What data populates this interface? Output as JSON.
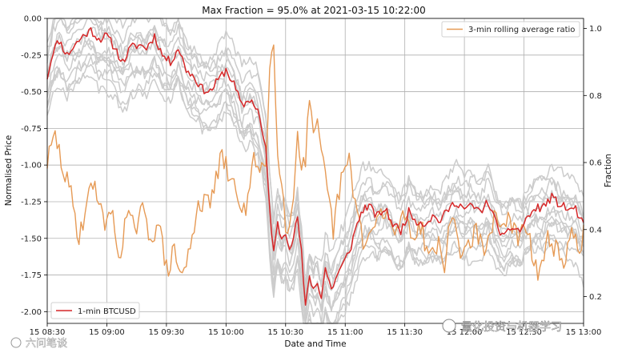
{
  "chart_data": {
    "type": "line",
    "title": "Max Fraction = 95.0% at 2021-03-15 10:22:00",
    "xlabel": "Date and Time",
    "ylabel_left": "Normalised Price",
    "ylabel_right": "Fraction",
    "x_ticks": [
      "15 08:30",
      "15 09:00",
      "15 09:30",
      "15 10:00",
      "15 10:30",
      "15 11:00",
      "15 11:30",
      "15 12:00",
      "15 12:30",
      "15 13:00"
    ],
    "x_tick_minutes": [
      0,
      30,
      60,
      90,
      120,
      150,
      180,
      210,
      240,
      270
    ],
    "xlim_minutes": [
      0,
      270
    ],
    "y_left_ticks": [
      "0.00",
      "-0.25",
      "-0.50",
      "-0.75",
      "-1.00",
      "-1.25",
      "-1.50",
      "-1.75",
      "-2.00"
    ],
    "y_left_tick_values": [
      0,
      -0.25,
      -0.5,
      -0.75,
      -1.0,
      -1.25,
      -1.5,
      -1.75,
      -2.0
    ],
    "y_left_lim": [
      -2.08,
      0
    ],
    "y_right_ticks": [
      "0.2",
      "0.4",
      "0.6",
      "0.8",
      "1.0"
    ],
    "y_right_tick_values": [
      0.2,
      0.4,
      0.6,
      0.8,
      1.0
    ],
    "y_right_lim": [
      0.12,
      1.03
    ],
    "grid": true,
    "series": [
      {
        "name": "1-min BTCUSD",
        "axis": "left",
        "color": "#d62728",
        "legend": "bottom-left",
        "keypoints_minutes": [
          0,
          3,
          6,
          10,
          14,
          18,
          22,
          26,
          30,
          34,
          38,
          42,
          46,
          50,
          54,
          58,
          62,
          66,
          70,
          74,
          78,
          82,
          86,
          90,
          94,
          98,
          102,
          106,
          110,
          112,
          114,
          116,
          118,
          120,
          122,
          124,
          126,
          128,
          130,
          132,
          134,
          136,
          138,
          140,
          143,
          146,
          150,
          153,
          156,
          159,
          162,
          166,
          170,
          174,
          178,
          182,
          186,
          190,
          194,
          198,
          202,
          206,
          210,
          214,
          218,
          222,
          226,
          230,
          234,
          238,
          242,
          246,
          250,
          254,
          258,
          262,
          266,
          270
        ],
        "keypoints_values": [
          -0.4,
          -0.22,
          -0.15,
          -0.25,
          -0.18,
          -0.12,
          -0.08,
          -0.14,
          -0.12,
          -0.2,
          -0.3,
          -0.2,
          -0.18,
          -0.2,
          -0.12,
          -0.25,
          -0.3,
          -0.2,
          -0.35,
          -0.4,
          -0.48,
          -0.5,
          -0.42,
          -0.35,
          -0.45,
          -0.6,
          -0.55,
          -0.62,
          -0.9,
          -1.3,
          -1.6,
          -1.4,
          -1.5,
          -1.45,
          -1.55,
          -1.5,
          -1.35,
          -1.6,
          -1.98,
          -1.75,
          -1.85,
          -1.8,
          -1.9,
          -1.7,
          -1.85,
          -1.75,
          -1.65,
          -1.55,
          -1.4,
          -1.3,
          -1.28,
          -1.35,
          -1.3,
          -1.4,
          -1.45,
          -1.32,
          -1.38,
          -1.4,
          -1.35,
          -1.38,
          -1.3,
          -1.25,
          -1.3,
          -1.28,
          -1.32,
          -1.25,
          -1.4,
          -1.5,
          -1.42,
          -1.45,
          -1.35,
          -1.3,
          -1.28,
          -1.22,
          -1.27,
          -1.3,
          -1.3,
          -1.42
        ]
      },
      {
        "name": "3-min rolling average ratio",
        "axis": "right",
        "color": "#e69a55",
        "legend": "top-right",
        "keypoints_minutes": [
          0,
          4,
          8,
          12,
          16,
          20,
          24,
          28,
          32,
          36,
          40,
          44,
          48,
          52,
          56,
          60,
          64,
          68,
          72,
          76,
          80,
          84,
          88,
          92,
          96,
          100,
          104,
          108,
          110,
          112,
          114,
          116,
          118,
          120,
          122,
          124,
          126,
          128,
          130,
          132,
          134,
          136,
          140,
          144,
          148,
          152,
          156,
          160,
          164,
          168,
          172,
          176,
          180,
          184,
          188,
          192,
          196,
          200,
          204,
          208,
          212,
          216,
          220,
          224,
          228,
          232,
          236,
          240,
          244,
          248,
          252,
          256,
          260,
          264,
          268,
          270
        ],
        "keypoints_values": [
          0.6,
          0.68,
          0.58,
          0.5,
          0.38,
          0.48,
          0.55,
          0.42,
          0.46,
          0.32,
          0.44,
          0.4,
          0.45,
          0.38,
          0.42,
          0.28,
          0.33,
          0.26,
          0.34,
          0.49,
          0.47,
          0.52,
          0.62,
          0.55,
          0.5,
          0.45,
          0.6,
          0.6,
          0.58,
          0.88,
          0.95,
          0.65,
          0.55,
          0.42,
          0.4,
          0.5,
          0.7,
          0.6,
          0.6,
          0.8,
          0.66,
          0.7,
          0.55,
          0.4,
          0.55,
          0.6,
          0.45,
          0.35,
          0.4,
          0.45,
          0.42,
          0.4,
          0.45,
          0.38,
          0.42,
          0.32,
          0.36,
          0.3,
          0.45,
          0.33,
          0.36,
          0.4,
          0.31,
          0.42,
          0.44,
          0.42,
          0.38,
          0.4,
          0.34,
          0.26,
          0.38,
          0.34,
          0.28,
          0.38,
          0.36,
          0.39
        ]
      }
    ],
    "background_series_count": 12,
    "background_series_color": "#cccccc"
  },
  "watermark": {
    "left": "六问笔谈",
    "right": "量化投资与机器学习"
  }
}
